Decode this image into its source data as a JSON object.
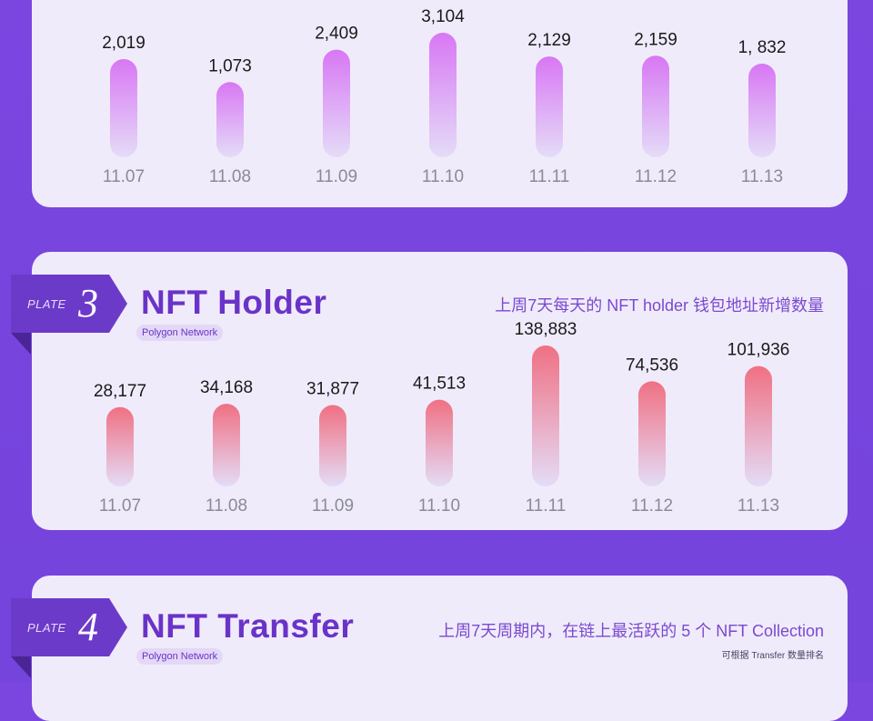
{
  "chart_data": [
    {
      "type": "bar",
      "categories": [
        "11.07",
        "11.08",
        "11.09",
        "11.10",
        "11.11",
        "11.12",
        "11.13"
      ],
      "values": [
        2019,
        1073,
        2409,
        3104,
        2129,
        2159,
        1832
      ],
      "value_labels": [
        "2,019",
        "1,073",
        "2,409",
        "3,104",
        "2,129",
        "2,159",
        "1, 832"
      ],
      "bar_color_top": "#d877f4",
      "bar_color_bottom": "#e4dcf7"
    },
    {
      "type": "bar",
      "title": "NFT Holder",
      "subtitle": "上周7天每天的 NFT holder 钱包地址新增数量",
      "categories": [
        "11.07",
        "11.08",
        "11.09",
        "11.10",
        "11.11",
        "11.12",
        "11.13"
      ],
      "values": [
        28177,
        34168,
        31877,
        41513,
        138883,
        74536,
        101936
      ],
      "value_labels": [
        "28,177",
        "34,168",
        "31,877",
        "41,513",
        "138,883",
        "74,536",
        "101,936"
      ],
      "bar_color_top": "#f07083",
      "bar_color_bottom": "#e4dcf7"
    }
  ],
  "plate3": {
    "word": "PLATE",
    "number": "3",
    "title": "NFT Holder",
    "network": "Polygon Network",
    "description": "上周7天每天的 NFT holder 钱包地址新增数量"
  },
  "plate4": {
    "word": "PLATE",
    "number": "4",
    "title": "NFT Transfer",
    "network": "Polygon Network",
    "description": "上周7天周期内，在链上最活跃的 5 个 NFT Collection",
    "note": "可根据 Transfer 数量排名"
  },
  "colors": {
    "background": "#7444dc",
    "card": "#f0ebfa",
    "accent": "#6a33c8",
    "plate": "#6c3ac9"
  }
}
